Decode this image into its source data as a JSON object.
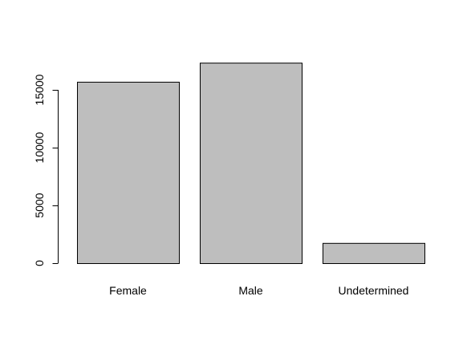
{
  "chart_data": {
    "type": "bar",
    "title": "",
    "xlabel": "",
    "ylabel": "",
    "categories": [
      "Female",
      "Male",
      "Undetermined"
    ],
    "values": [
      15700,
      17350,
      1750
    ],
    "ylim": [
      0,
      18000
    ],
    "yticks": [
      0,
      5000,
      10000,
      15000
    ],
    "ytick_labels": [
      "0",
      "5000",
      "10000",
      "15000"
    ],
    "grid": false,
    "legend": "none",
    "bar_color": "#bebebe",
    "bar_outline_color": "#000000",
    "axis_color": "#000000"
  }
}
